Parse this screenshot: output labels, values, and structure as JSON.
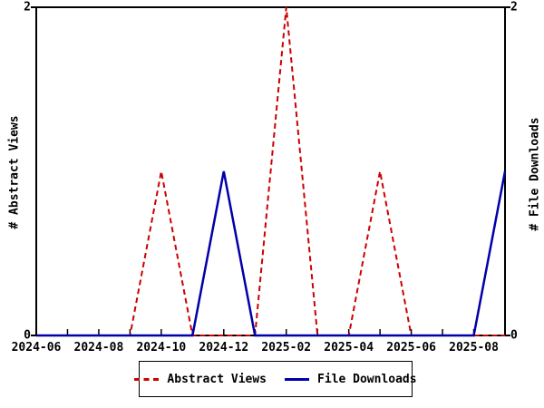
{
  "chart_data": {
    "type": "line",
    "x": [
      "2024-06",
      "2024-07",
      "2024-08",
      "2024-09",
      "2024-10",
      "2024-11",
      "2024-12",
      "2025-01",
      "2025-02",
      "2025-03",
      "2025-04",
      "2025-05",
      "2025-06",
      "2025-07",
      "2025-08",
      "2025-09"
    ],
    "x_tick_labels": [
      "2024-06",
      "2024-08",
      "2024-10",
      "2024-12",
      "2025-02",
      "2025-04",
      "2025-06",
      "2025-08"
    ],
    "x_tick_month_indices": [
      0,
      2,
      4,
      6,
      8,
      10,
      12,
      14
    ],
    "series": [
      {
        "name": "Abstract Views",
        "style": "dashed",
        "color": "#cc0000",
        "values": [
          0,
          0,
          0,
          0,
          1,
          0,
          0,
          0,
          2,
          0,
          0,
          1,
          0,
          0,
          0,
          0
        ]
      },
      {
        "name": "File Downloads",
        "style": "solid",
        "color": "#0000aa",
        "values": [
          0,
          0,
          0,
          0,
          0,
          0,
          1,
          0,
          0,
          0,
          0,
          0,
          0,
          0,
          0,
          1
        ]
      }
    ],
    "ylabel_left": "# Abstract Views",
    "ylabel_right": "# File Downloads",
    "ylim": [
      0,
      2
    ],
    "y_tick_values": [
      0,
      2
    ],
    "y_tick_labels": [
      "0",
      "2"
    ],
    "grid": false,
    "legend_position": "bottom-center",
    "axis_color": "#000000",
    "background_color": "#ffffff"
  }
}
